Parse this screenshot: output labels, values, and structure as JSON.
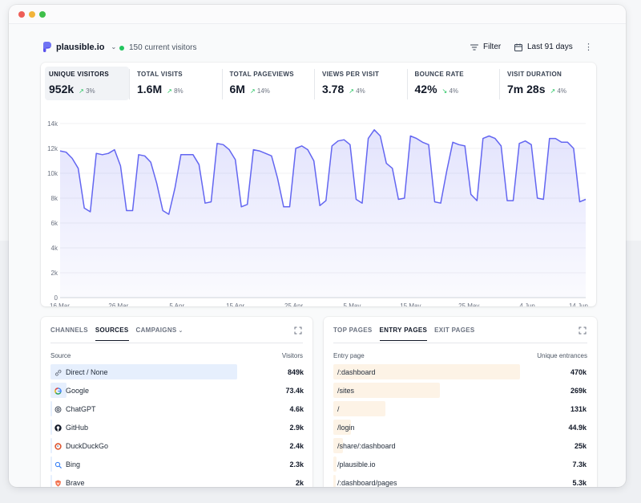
{
  "site": {
    "name": "plausible.io",
    "current_visitors": "150 current visitors"
  },
  "toolbar": {
    "filter_label": "Filter",
    "period_label": "Last 91 days",
    "more_icon": "vertical-dots-icon"
  },
  "metrics": [
    {
      "label": "UNIQUE VISITORS",
      "value": "952k",
      "change": "3%",
      "direction": "up"
    },
    {
      "label": "TOTAL VISITS",
      "value": "1.6M",
      "change": "8%",
      "direction": "up"
    },
    {
      "label": "TOTAL PAGEVIEWS",
      "value": "6M",
      "change": "14%",
      "direction": "up"
    },
    {
      "label": "VIEWS PER VISIT",
      "value": "3.78",
      "change": "4%",
      "direction": "up"
    },
    {
      "label": "BOUNCE RATE",
      "value": "42%",
      "change": "4%",
      "direction": "down"
    },
    {
      "label": "VISIT DURATION",
      "value": "7m 28s",
      "change": "4%",
      "direction": "up"
    }
  ],
  "chart_data": {
    "type": "area",
    "title": "",
    "xlabel": "",
    "ylabel": "",
    "ylim": [
      0,
      14000
    ],
    "y_ticks": [
      "0",
      "2k",
      "4k",
      "6k",
      "8k",
      "10k",
      "12k",
      "14k"
    ],
    "x_tick_labels": [
      "16 Mar",
      "26 Mar",
      "5 Apr",
      "15 Apr",
      "25 Apr",
      "5 May",
      "15 May",
      "25 May",
      "4 Jun",
      "14 Jun"
    ],
    "x_tick_days": [
      0,
      10,
      20,
      30,
      40,
      50,
      60,
      70,
      80,
      90
    ],
    "grid": true,
    "color": "#6366f1",
    "series": [
      {
        "values": [
          11800,
          11700,
          11200,
          10400,
          7200,
          6900,
          11600,
          11500,
          11600,
          11900,
          10600,
          7000,
          7000,
          11500,
          11400,
          10900,
          9200,
          7000,
          6700,
          8800,
          11500,
          11500,
          11500,
          10700,
          7600,
          7700,
          12400,
          12300,
          11900,
          11100,
          7300,
          7500,
          11900,
          11800,
          11600,
          11400,
          9600,
          7300,
          7300,
          12000,
          12200,
          11900,
          11000,
          7400,
          7800,
          12200,
          12600,
          12700,
          12300,
          7900,
          7600,
          12800,
          13500,
          13000,
          10800,
          10400,
          7900,
          8000,
          13000,
          12800,
          12500,
          12300,
          7700,
          7600,
          10200,
          12500,
          12300,
          12200,
          8300,
          7800,
          12800,
          13000,
          12800,
          12200,
          7800,
          7800,
          12400,
          12600,
          12300,
          8000,
          7900,
          12800,
          12800,
          12500,
          12500,
          12000,
          7700,
          7900
        ]
      }
    ]
  },
  "sources_panel": {
    "tabs": [
      "CHANNELS",
      "SOURCES",
      "CAMPAIGNS"
    ],
    "active_tab": "SOURCES",
    "col_source": "Source",
    "col_visitors": "Visitors",
    "rows": [
      {
        "label": "Direct / None",
        "value": "849k",
        "fraction": 1.0,
        "icon": "link-icon"
      },
      {
        "label": "Google",
        "value": "73.4k",
        "fraction": 0.086,
        "icon": "google-icon"
      },
      {
        "label": "ChatGPT",
        "value": "4.6k",
        "fraction": 0.006,
        "icon": "chatgpt-icon"
      },
      {
        "label": "GitHub",
        "value": "2.9k",
        "fraction": 0.004,
        "icon": "github-icon"
      },
      {
        "label": "DuckDuckGo",
        "value": "2.4k",
        "fraction": 0.003,
        "icon": "duckduckgo-icon"
      },
      {
        "label": "Bing",
        "value": "2.3k",
        "fraction": 0.003,
        "icon": "bing-icon"
      },
      {
        "label": "Brave",
        "value": "2k",
        "fraction": 0.002,
        "icon": "brave-icon"
      }
    ]
  },
  "pages_panel": {
    "tabs": [
      "TOP PAGES",
      "ENTRY PAGES",
      "EXIT PAGES"
    ],
    "active_tab": "ENTRY PAGES",
    "col_page": "Entry page",
    "col_entrances": "Unique entrances",
    "rows": [
      {
        "label": "/:dashboard",
        "value": "470k",
        "fraction": 1.0
      },
      {
        "label": "/sites",
        "value": "269k",
        "fraction": 0.572
      },
      {
        "label": "/",
        "value": "131k",
        "fraction": 0.279
      },
      {
        "label": "/login",
        "value": "44.9k",
        "fraction": 0.096
      },
      {
        "label": "/share/:dashboard",
        "value": "25k",
        "fraction": 0.053
      },
      {
        "label": "/plausible.io",
        "value": "7.3k",
        "fraction": 0.016
      },
      {
        "label": "/:dashboard/pages",
        "value": "5.3k",
        "fraction": 0.011
      }
    ]
  }
}
